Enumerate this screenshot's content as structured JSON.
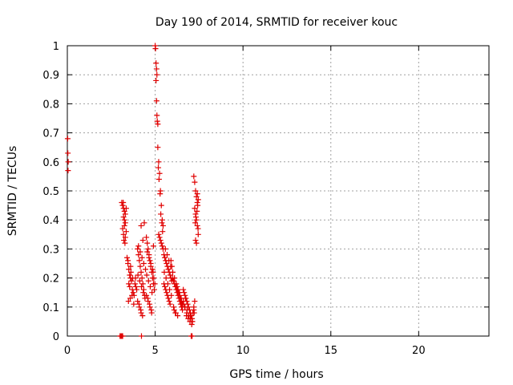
{
  "chart_data": {
    "type": "scatter",
    "title": "Day 190 of 2014, SRMTID for receiver kouc",
    "xlabel": "GPS time / hours",
    "ylabel": "SRMTID / TECUs",
    "xlim": [
      0,
      24
    ],
    "ylim": [
      0,
      1
    ],
    "xticks": [
      0,
      5,
      10,
      15,
      20
    ],
    "yticks": [
      0,
      0.1,
      0.2,
      0.3,
      0.4,
      0.5,
      0.6,
      0.7,
      0.8,
      0.9,
      1
    ],
    "ytick_labels": [
      "0",
      "0.1",
      "0.2",
      "0.3",
      "0.4",
      "0.5",
      "0.6",
      "0.7",
      "0.8",
      "0.9",
      "1"
    ],
    "grid": true,
    "marker": "+",
    "color": "#e00000",
    "series": [
      {
        "name": "SRMTID",
        "x": [
          0.02,
          0.03,
          0.04,
          0.05,
          3.0,
          3.05,
          3.1,
          3.15,
          3.1,
          3.15,
          3.2,
          3.25,
          3.3,
          3.2,
          3.25,
          3.3,
          3.35,
          3.15,
          3.2,
          3.3,
          3.22,
          3.28,
          3.18,
          3.35,
          3.25,
          3.4,
          3.45,
          3.5,
          3.55,
          3.6,
          3.65,
          3.5,
          3.55,
          3.7,
          3.75,
          3.8,
          3.45,
          3.6,
          3.62,
          3.72,
          3.85,
          3.9,
          3.95,
          3.48,
          3.58,
          3.68,
          3.78,
          3.88,
          4.0,
          4.05,
          4.1,
          4.15,
          4.2,
          4.25,
          4.3,
          4.35,
          4.4,
          4.0,
          4.1,
          4.2,
          4.3,
          4.05,
          4.15,
          4.25,
          4.35,
          4.45,
          4.02,
          4.12,
          4.22,
          4.32,
          4.42,
          4.08,
          4.18,
          4.28,
          4.38,
          4.2,
          4.22,
          4.5,
          4.55,
          4.6,
          4.65,
          4.7,
          4.75,
          4.8,
          4.85,
          4.9,
          4.95,
          4.5,
          4.6,
          4.7,
          4.8,
          4.9,
          4.55,
          4.65,
          4.75,
          4.85,
          4.52,
          4.62,
          4.72,
          4.82,
          4.58,
          4.68,
          4.78,
          4.88,
          4.92,
          4.98,
          5.0,
          5.02,
          5.05,
          5.08,
          5.1,
          5.05,
          5.08,
          5.1,
          5.12,
          5.15,
          5.15,
          5.2,
          5.18,
          5.25,
          5.22,
          5.3,
          5.28,
          5.35,
          5.32,
          5.4,
          5.38,
          5.45,
          5.42,
          5.2,
          5.25,
          5.3,
          5.35,
          5.4,
          5.45,
          5.5,
          5.55,
          5.6,
          5.65,
          5.7,
          5.75,
          5.8,
          5.85,
          5.9,
          5.95,
          5.5,
          5.55,
          5.6,
          5.65,
          5.7,
          5.75,
          5.8,
          5.85,
          5.9,
          5.95,
          5.52,
          5.62,
          5.72,
          5.82,
          5.92,
          5.58,
          5.68,
          5.78,
          5.88,
          6.0,
          6.05,
          6.1,
          6.15,
          6.2,
          6.25,
          6.3,
          6.35,
          6.4,
          6.45,
          6.5,
          6.55,
          6.0,
          6.1,
          6.2,
          6.3,
          6.4,
          6.5,
          6.05,
          6.15,
          6.25,
          6.35,
          6.45,
          6.55,
          6.08,
          6.18,
          6.28,
          6.38,
          6.48,
          6.6,
          6.65,
          6.7,
          6.75,
          6.8,
          6.85,
          6.9,
          6.95,
          7.0,
          7.05,
          7.1,
          7.15,
          7.2,
          7.25,
          6.6,
          6.7,
          6.8,
          6.9,
          7.0,
          7.1,
          7.2,
          6.62,
          6.72,
          6.82,
          6.92,
          7.02,
          7.12,
          7.22,
          6.68,
          6.78,
          6.88,
          6.98,
          7.08,
          7.05,
          7.1,
          7.2,
          7.25,
          7.3,
          7.35,
          7.4,
          7.25,
          7.3,
          7.35,
          7.4,
          7.45,
          7.3,
          7.35,
          7.4,
          7.45,
          7.42,
          7.38,
          7.32,
          7.28,
          7.44
        ],
        "y": [
          0.68,
          0.63,
          0.57,
          0.6,
          0.0,
          0.0,
          0.0,
          0.0,
          0.46,
          0.45,
          0.44,
          0.43,
          0.42,
          0.41,
          0.4,
          0.39,
          0.36,
          0.37,
          0.35,
          0.34,
          0.33,
          0.32,
          0.46,
          0.44,
          0.38,
          0.27,
          0.25,
          0.23,
          0.21,
          0.2,
          0.19,
          0.18,
          0.17,
          0.16,
          0.15,
          0.14,
          0.26,
          0.24,
          0.22,
          0.2,
          0.18,
          0.17,
          0.16,
          0.12,
          0.13,
          0.14,
          0.11,
          0.2,
          0.3,
          0.28,
          0.26,
          0.24,
          0.22,
          0.2,
          0.18,
          0.16,
          0.14,
          0.12,
          0.1,
          0.08,
          0.33,
          0.31,
          0.29,
          0.27,
          0.25,
          0.23,
          0.21,
          0.19,
          0.17,
          0.15,
          0.13,
          0.11,
          0.09,
          0.07,
          0.39,
          0.38,
          0.0,
          0.34,
          0.32,
          0.3,
          0.28,
          0.26,
          0.24,
          0.22,
          0.2,
          0.18,
          0.16,
          0.14,
          0.12,
          0.1,
          0.08,
          0.31,
          0.29,
          0.27,
          0.25,
          0.23,
          0.21,
          0.19,
          0.17,
          0.15,
          0.13,
          0.11,
          0.09,
          0.22,
          0.2,
          0.18,
          1.0,
          0.99,
          0.94,
          0.92,
          0.9,
          0.88,
          0.81,
          0.76,
          0.74,
          0.73,
          0.65,
          0.6,
          0.58,
          0.56,
          0.54,
          0.5,
          0.49,
          0.45,
          0.42,
          0.4,
          0.39,
          0.38,
          0.36,
          0.35,
          0.34,
          0.33,
          0.32,
          0.31,
          0.3,
          0.28,
          0.27,
          0.26,
          0.25,
          0.24,
          0.23,
          0.22,
          0.21,
          0.2,
          0.19,
          0.18,
          0.17,
          0.16,
          0.15,
          0.14,
          0.13,
          0.12,
          0.11,
          0.26,
          0.24,
          0.22,
          0.2,
          0.18,
          0.16,
          0.14,
          0.3,
          0.28,
          0.26,
          0.24,
          0.2,
          0.19,
          0.18,
          0.17,
          0.16,
          0.15,
          0.14,
          0.13,
          0.12,
          0.11,
          0.1,
          0.09,
          0.22,
          0.2,
          0.18,
          0.16,
          0.14,
          0.12,
          0.1,
          0.08,
          0.17,
          0.15,
          0.13,
          0.11,
          0.09,
          0.08,
          0.07,
          0.15,
          0.13,
          0.16,
          0.15,
          0.14,
          0.13,
          0.12,
          0.11,
          0.1,
          0.09,
          0.08,
          0.07,
          0.06,
          0.08,
          0.1,
          0.12,
          0.12,
          0.1,
          0.08,
          0.07,
          0.06,
          0.05,
          0.09,
          0.11,
          0.13,
          0.09,
          0.07,
          0.06,
          0.05,
          0.08,
          0.1,
          0.07,
          0.06,
          0.05,
          0.04,
          0.0,
          0.0,
          0.55,
          0.53,
          0.5,
          0.48,
          0.46,
          0.44,
          0.42,
          0.4,
          0.38,
          0.35,
          0.33,
          0.32,
          0.49,
          0.47,
          0.45,
          0.43,
          0.41,
          0.39,
          0.37
        ]
      }
    ]
  }
}
